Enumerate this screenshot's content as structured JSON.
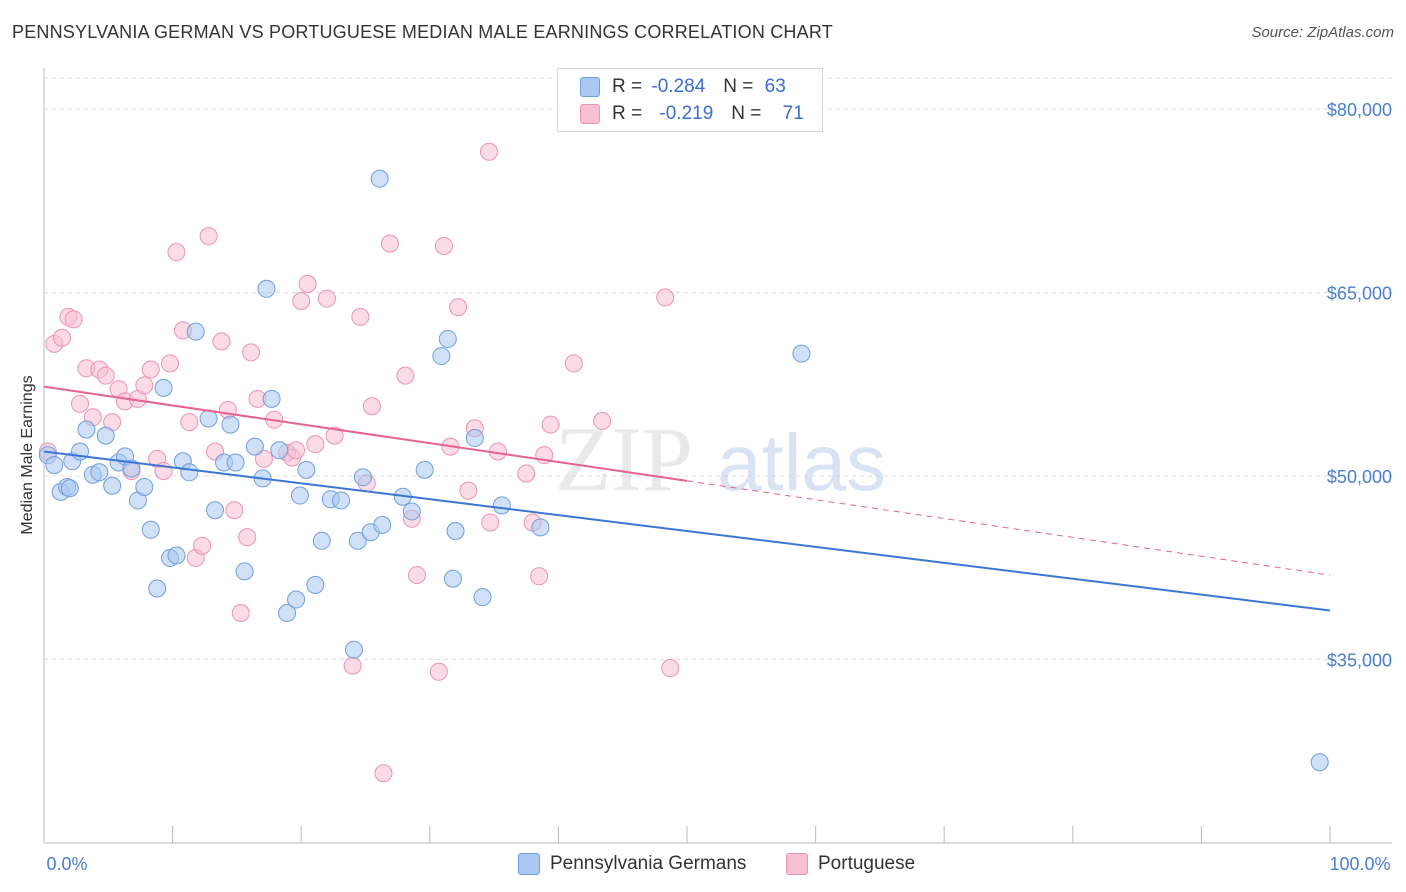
{
  "title": "PENNSYLVANIA GERMAN VS PORTUGUESE MEDIAN MALE EARNINGS CORRELATION CHART",
  "source": "Source: ZipAtlas.com",
  "watermark": "ZIPatlas",
  "legend": {
    "rows": [
      {
        "r_label": "R =",
        "r_value": "-0.284",
        "n_label": "N =",
        "n_value": "63"
      },
      {
        "r_label": "R =",
        "r_value": "-0.219",
        "n_label": "N =",
        "n_value": "71"
      }
    ]
  },
  "bottom_legend": [
    "Pennsylvania Germans",
    "Portuguese"
  ],
  "colors": {
    "blue_fill": "#aac8f0",
    "blue_stroke": "#6f9fde",
    "blue_line": "#3a77d4",
    "pink_fill": "#f7bfd2",
    "pink_stroke": "#ec93b2",
    "pink_line": "#e8628e",
    "grid": "#dcdcdc",
    "tick_text": "#4a7fd0"
  },
  "chart_data": {
    "type": "scatter",
    "title": "PENNSYLVANIA GERMAN VS PORTUGUESE MEDIAN MALE EARNINGS CORRELATION CHART",
    "xlabel": "",
    "ylabel": "Median Male Earnings",
    "xlim": [
      0,
      100
    ],
    "ylim": [
      20000,
      84000
    ],
    "x_tick_labels": [
      "0.0%",
      "100.0%"
    ],
    "y_ticks": [
      35000,
      50000,
      65000,
      80000
    ],
    "y_tick_labels": [
      "$35,000",
      "$50,000",
      "$65,000",
      "$80,000"
    ],
    "grid": true,
    "legend_position": "top-center",
    "series": [
      {
        "name": "Pennsylvania Germans",
        "points": [
          [
            0.3,
            51700
          ],
          [
            0.8,
            50900
          ],
          [
            1.3,
            48700
          ],
          [
            1.8,
            49100
          ],
          [
            2.2,
            51200
          ],
          [
            2.8,
            52000
          ],
          [
            3.3,
            53800
          ],
          [
            3.8,
            50100
          ],
          [
            4.3,
            50300
          ],
          [
            4.8,
            53300
          ],
          [
            5.3,
            49200
          ],
          [
            5.8,
            51100
          ],
          [
            6.3,
            51600
          ],
          [
            6.8,
            50600
          ],
          [
            7.3,
            48000
          ],
          [
            7.8,
            49100
          ],
          [
            8.3,
            45600
          ],
          [
            8.8,
            40800
          ],
          [
            9.3,
            57200
          ],
          [
            9.8,
            43300
          ],
          [
            10.3,
            43500
          ],
          [
            10.8,
            51200
          ],
          [
            11.3,
            50300
          ],
          [
            11.8,
            61800
          ],
          [
            12.8,
            54700
          ],
          [
            13.3,
            47200
          ],
          [
            14.0,
            51100
          ],
          [
            14.5,
            54200
          ],
          [
            14.9,
            51100
          ],
          [
            15.6,
            42200
          ],
          [
            16.4,
            52400
          ],
          [
            17.0,
            49800
          ],
          [
            17.3,
            65300
          ],
          [
            17.7,
            56300
          ],
          [
            18.3,
            52100
          ],
          [
            18.9,
            38800
          ],
          [
            19.6,
            39900
          ],
          [
            19.9,
            48400
          ],
          [
            20.4,
            50500
          ],
          [
            21.1,
            41100
          ],
          [
            21.6,
            44700
          ],
          [
            22.3,
            48100
          ],
          [
            23.1,
            48000
          ],
          [
            24.1,
            35800
          ],
          [
            24.4,
            44700
          ],
          [
            24.8,
            49900
          ],
          [
            25.4,
            45400
          ],
          [
            26.1,
            74300
          ],
          [
            26.3,
            46000
          ],
          [
            27.9,
            48300
          ],
          [
            28.6,
            47100
          ],
          [
            29.6,
            50500
          ],
          [
            30.9,
            59800
          ],
          [
            31.4,
            61200
          ],
          [
            32.0,
            45500
          ],
          [
            31.8,
            41600
          ],
          [
            33.5,
            53100
          ],
          [
            34.1,
            40100
          ],
          [
            35.6,
            47600
          ],
          [
            38.6,
            45800
          ],
          [
            58.9,
            60000
          ],
          [
            99.2,
            26600
          ],
          [
            2.0,
            49000
          ]
        ]
      },
      {
        "name": "Portuguese",
        "points": [
          [
            0.3,
            52000
          ],
          [
            0.8,
            60800
          ],
          [
            1.4,
            61300
          ],
          [
            1.9,
            63000
          ],
          [
            2.3,
            62800
          ],
          [
            2.8,
            55900
          ],
          [
            3.3,
            58800
          ],
          [
            3.8,
            54800
          ],
          [
            4.3,
            58700
          ],
          [
            4.8,
            58200
          ],
          [
            5.3,
            54400
          ],
          [
            5.8,
            57100
          ],
          [
            6.3,
            56100
          ],
          [
            6.8,
            50400
          ],
          [
            7.3,
            56300
          ],
          [
            7.8,
            57400
          ],
          [
            8.3,
            58700
          ],
          [
            8.8,
            51400
          ],
          [
            9.3,
            50400
          ],
          [
            9.8,
            59200
          ],
          [
            10.3,
            68300
          ],
          [
            10.8,
            61900
          ],
          [
            11.3,
            54400
          ],
          [
            11.8,
            43300
          ],
          [
            12.3,
            44300
          ],
          [
            12.8,
            69600
          ],
          [
            13.3,
            52000
          ],
          [
            13.8,
            61000
          ],
          [
            14.3,
            55400
          ],
          [
            14.8,
            47200
          ],
          [
            15.3,
            38800
          ],
          [
            15.8,
            45000
          ],
          [
            16.1,
            60100
          ],
          [
            16.6,
            56300
          ],
          [
            17.1,
            51400
          ],
          [
            17.9,
            54600
          ],
          [
            18.9,
            51900
          ],
          [
            19.3,
            51500
          ],
          [
            19.6,
            52100
          ],
          [
            20.0,
            64300
          ],
          [
            20.5,
            65700
          ],
          [
            21.1,
            52600
          ],
          [
            22.0,
            64500
          ],
          [
            22.6,
            53300
          ],
          [
            24.0,
            34500
          ],
          [
            24.6,
            63000
          ],
          [
            25.1,
            49400
          ],
          [
            25.5,
            55700
          ],
          [
            26.4,
            25700
          ],
          [
            26.9,
            69000
          ],
          [
            28.1,
            58200
          ],
          [
            28.6,
            46500
          ],
          [
            29.0,
            41900
          ],
          [
            30.7,
            34000
          ],
          [
            31.1,
            68800
          ],
          [
            31.6,
            52400
          ],
          [
            32.2,
            63800
          ],
          [
            33.0,
            48800
          ],
          [
            33.5,
            53900
          ],
          [
            34.7,
            46200
          ],
          [
            35.3,
            52000
          ],
          [
            37.5,
            50200
          ],
          [
            38.0,
            46200
          ],
          [
            38.5,
            41800
          ],
          [
            38.9,
            51700
          ],
          [
            39.4,
            54200
          ],
          [
            41.2,
            59200
          ],
          [
            43.4,
            54500
          ],
          [
            48.3,
            64600
          ],
          [
            48.7,
            34300
          ],
          [
            34.6,
            76500
          ]
        ]
      }
    ],
    "trend_lines": [
      {
        "series": "Pennsylvania Germans",
        "from": [
          0,
          52000
        ],
        "to": [
          100,
          39000
        ],
        "style": "solid"
      },
      {
        "series": "Portuguese",
        "from": [
          0,
          57300
        ],
        "to": [
          50,
          49600
        ],
        "style": "solid"
      },
      {
        "series": "Portuguese",
        "from": [
          50,
          49600
        ],
        "to": [
          100,
          41900
        ],
        "style": "dashed"
      }
    ]
  }
}
